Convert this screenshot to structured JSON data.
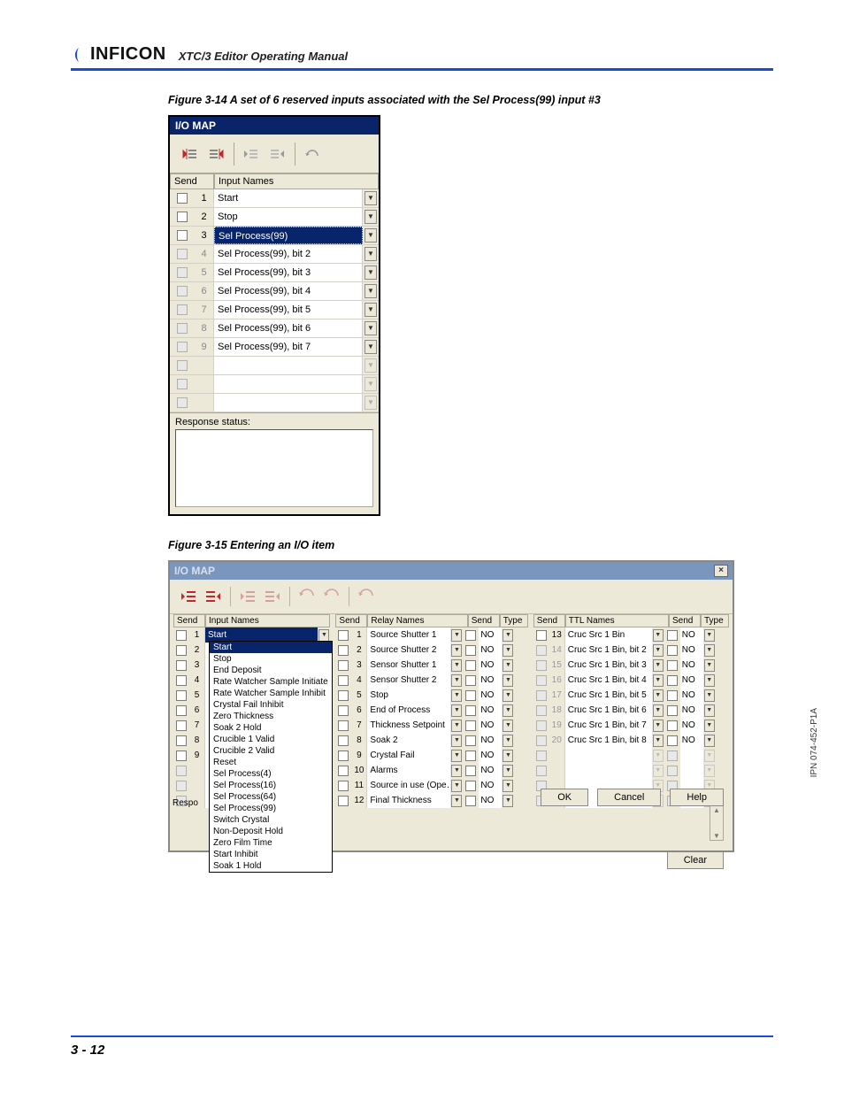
{
  "header": {
    "brand": "INFICON",
    "manual_title": "XTC/3 Editor Operating Manual"
  },
  "side_ipn": "IPN 074-452-P1A",
  "footer": {
    "page_num": "3 - 12"
  },
  "fig14": {
    "caption": "Figure 3-14  A set of 6 reserved inputs associated with the Sel Process(99) input #3",
    "window_title": "I/O MAP",
    "toolbar_labels": [
      "ALL",
      "ALL",
      "SEL",
      "SEL",
      "ALL"
    ],
    "head": {
      "send": "Send",
      "input_names": "Input Names"
    },
    "rows": [
      {
        "num": "1",
        "name": "Start",
        "selected": false,
        "disabled": false
      },
      {
        "num": "2",
        "name": "Stop",
        "selected": false,
        "disabled": false
      },
      {
        "num": "3",
        "name": "Sel Process(99)",
        "selected": true,
        "disabled": false
      },
      {
        "num": "4",
        "name": "Sel Process(99), bit 2",
        "selected": false,
        "disabled": true
      },
      {
        "num": "5",
        "name": "Sel Process(99), bit 3",
        "selected": false,
        "disabled": true
      },
      {
        "num": "6",
        "name": "Sel Process(99), bit 4",
        "selected": false,
        "disabled": true
      },
      {
        "num": "7",
        "name": "Sel Process(99), bit 5",
        "selected": false,
        "disabled": true
      },
      {
        "num": "8",
        "name": "Sel Process(99), bit 6",
        "selected": false,
        "disabled": true
      },
      {
        "num": "9",
        "name": "Sel Process(99), bit 7",
        "selected": false,
        "disabled": true
      },
      {
        "num": "",
        "name": "",
        "selected": false,
        "disabled": true
      },
      {
        "num": "",
        "name": "",
        "selected": false,
        "disabled": true
      },
      {
        "num": "",
        "name": "",
        "selected": false,
        "disabled": true
      }
    ],
    "response_label": "Response status:"
  },
  "fig15": {
    "caption": "Figure 3-15  Entering an I/O item",
    "window_title": "I/O MAP",
    "close": "×",
    "head": {
      "send": "Send",
      "input": "Input Names",
      "relay": "Relay Names",
      "type": "Type",
      "ttl": "TTL Names"
    },
    "selected_input": "Start",
    "dropdown": [
      "Start",
      "Stop",
      "End Deposit",
      "Rate Watcher Sample Initiate",
      "Rate Watcher Sample Inhibit",
      "Crystal Fail Inhibit",
      "Zero Thickness",
      "Soak 2 Hold",
      "Crucible 1 Valid",
      "Crucible 2 Valid",
      "Reset",
      "Sel Process(4)",
      "Sel Process(16)",
      "Sel Process(64)",
      "Sel Process(99)",
      "Switch Crystal",
      "Non-Deposit Hold",
      "Zero Film Time",
      "Start Inhibit",
      "Soak 1 Hold"
    ],
    "dropdown_highlight": "Start",
    "input_rows": [
      {
        "num": "1",
        "dis": false
      },
      {
        "num": "2",
        "dis": false
      },
      {
        "num": "3",
        "dis": false
      },
      {
        "num": "4",
        "dis": false
      },
      {
        "num": "5",
        "dis": false
      },
      {
        "num": "6",
        "dis": false
      },
      {
        "num": "7",
        "dis": false
      },
      {
        "num": "8",
        "dis": false
      },
      {
        "num": "9",
        "dis": false
      },
      {
        "num": "",
        "dis": true
      },
      {
        "num": "",
        "dis": true
      },
      {
        "num": "",
        "dis": true
      }
    ],
    "relay_rows": [
      {
        "num": "1",
        "name": "Source Shutter 1",
        "type": "NO"
      },
      {
        "num": "2",
        "name": "Source Shutter 2",
        "type": "NO"
      },
      {
        "num": "3",
        "name": "Sensor Shutter 1",
        "type": "NO"
      },
      {
        "num": "4",
        "name": "Sensor Shutter 2",
        "type": "NO"
      },
      {
        "num": "5",
        "name": "Stop",
        "type": "NO"
      },
      {
        "num": "6",
        "name": "End of Process",
        "type": "NO"
      },
      {
        "num": "7",
        "name": "Thickness Setpoint",
        "type": "NO"
      },
      {
        "num": "8",
        "name": "Soak 2",
        "type": "NO"
      },
      {
        "num": "9",
        "name": "Crystal Fail",
        "type": "NO"
      },
      {
        "num": "10",
        "name": "Alarms",
        "type": "NO"
      },
      {
        "num": "11",
        "name": "Source in use (Ope…",
        "type": "NO"
      },
      {
        "num": "12",
        "name": "Final Thickness",
        "type": "NO"
      }
    ],
    "ttl_rows": [
      {
        "num": "13",
        "name": "Cruc Src 1 Bin",
        "type": "NO",
        "dis": false
      },
      {
        "num": "14",
        "name": "Cruc Src 1 Bin, bit 2",
        "type": "NO",
        "dis": true
      },
      {
        "num": "15",
        "name": "Cruc Src 1 Bin, bit 3",
        "type": "NO",
        "dis": true
      },
      {
        "num": "16",
        "name": "Cruc Src 1 Bin, bit 4",
        "type": "NO",
        "dis": true
      },
      {
        "num": "17",
        "name": "Cruc Src 1 Bin, bit 5",
        "type": "NO",
        "dis": true
      },
      {
        "num": "18",
        "name": "Cruc Src 1 Bin, bit 6",
        "type": "NO",
        "dis": true
      },
      {
        "num": "19",
        "name": "Cruc Src 1 Bin, bit 7",
        "type": "NO",
        "dis": true
      },
      {
        "num": "20",
        "name": "Cruc Src 1 Bin, bit 8",
        "type": "NO",
        "dis": true
      },
      {
        "num": "",
        "name": "",
        "type": "",
        "dis": true
      },
      {
        "num": "",
        "name": "",
        "type": "",
        "dis": true
      },
      {
        "num": "",
        "name": "",
        "type": "",
        "dis": true
      },
      {
        "num": "",
        "name": "",
        "type": "",
        "dis": true
      }
    ],
    "response_prefix": "Respo",
    "buttons": {
      "clear": "Clear",
      "ok": "OK",
      "cancel": "Cancel",
      "help": "Help"
    }
  }
}
